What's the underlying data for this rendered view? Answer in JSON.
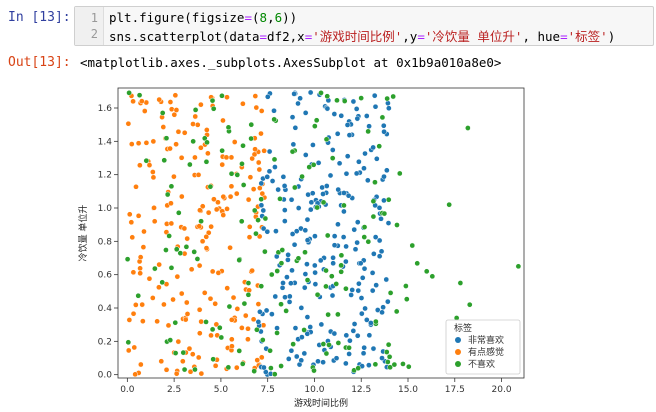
{
  "cell_in": {
    "prompt": "In  [13]:",
    "line_numbers": [
      "1",
      "2"
    ],
    "lines": [
      [
        {
          "t": "plt.figure(figsize",
          "c": "plain"
        },
        {
          "t": "=",
          "c": "op"
        },
        {
          "t": "(",
          "c": "plain"
        },
        {
          "t": "8",
          "c": "num"
        },
        {
          "t": ",",
          "c": "plain"
        },
        {
          "t": "6",
          "c": "num"
        },
        {
          "t": "))",
          "c": "plain"
        }
      ],
      [
        {
          "t": "sns.scatterplot(data",
          "c": "plain"
        },
        {
          "t": "=",
          "c": "op"
        },
        {
          "t": "df2,x",
          "c": "plain"
        },
        {
          "t": "=",
          "c": "op"
        },
        {
          "t": "'游戏时间比例'",
          "c": "str"
        },
        {
          "t": ",y",
          "c": "plain"
        },
        {
          "t": "=",
          "c": "op"
        },
        {
          "t": "'冷饮量 单位升'",
          "c": "str"
        },
        {
          "t": ", hue",
          "c": "plain"
        },
        {
          "t": "=",
          "c": "op"
        },
        {
          "t": "'标签'",
          "c": "str"
        },
        {
          "t": ")",
          "c": "plain"
        }
      ]
    ]
  },
  "cell_out": {
    "prompt": "Out[13]:",
    "text": "<matplotlib.axes._subplots.AxesSubplot at 0x1b9a010a8e0>"
  },
  "colors": {
    "syntax_number": "#008800",
    "syntax_string": "#ba2121",
    "syntax_operator": "#aa22ff"
  },
  "chart_data": {
    "type": "scatter",
    "xlabel": "游戏时间比例",
    "ylabel": "冷饮量 单位升",
    "xlim": [
      -0.5,
      21.2
    ],
    "ylim": [
      -0.02,
      1.72
    ],
    "xticks": [
      0.0,
      2.5,
      5.0,
      7.5,
      10.0,
      12.5,
      15.0,
      17.5,
      20.0
    ],
    "xtick_labels": [
      "0.0",
      "2.5",
      "5.0",
      "7.5",
      "10.0",
      "12.5",
      "15.0",
      "17.5",
      "20.0"
    ],
    "yticks": [
      0.0,
      0.2,
      0.4,
      0.6,
      0.8,
      1.0,
      1.2,
      1.4,
      1.6
    ],
    "ytick_labels": [
      "0.0",
      "0.2",
      "0.4",
      "0.6",
      "0.8",
      "1.0",
      "1.2",
      "1.4",
      "1.6"
    ],
    "legend_title": "标签",
    "legend_position": "lower-right",
    "grid": false,
    "series": [
      {
        "name": "非常喜欢",
        "color": "#1f77b4",
        "x_range": [
          7.0,
          14.0
        ],
        "y_range": [
          0.0,
          1.7
        ],
        "count": 260,
        "seed": 11
      },
      {
        "name": "有点感觉",
        "color": "#ff7f0e",
        "x_range": [
          0.0,
          7.5
        ],
        "y_range": [
          0.0,
          1.7
        ],
        "count": 230,
        "seed": 29
      },
      {
        "name": "不喜欢",
        "color": "#2ca02c",
        "x_range": [
          0.0,
          15.5
        ],
        "y_range": [
          0.0,
          1.7
        ],
        "count": 170,
        "seed": 47,
        "points": [
          [
            18.2,
            1.48
          ],
          [
            20.9,
            0.65
          ],
          [
            17.2,
            1.02
          ],
          [
            16.3,
            0.59
          ],
          [
            17.8,
            0.55
          ],
          [
            18.3,
            0.42
          ],
          [
            16.0,
            0.62
          ],
          [
            17.6,
            0.34
          ]
        ]
      }
    ]
  }
}
